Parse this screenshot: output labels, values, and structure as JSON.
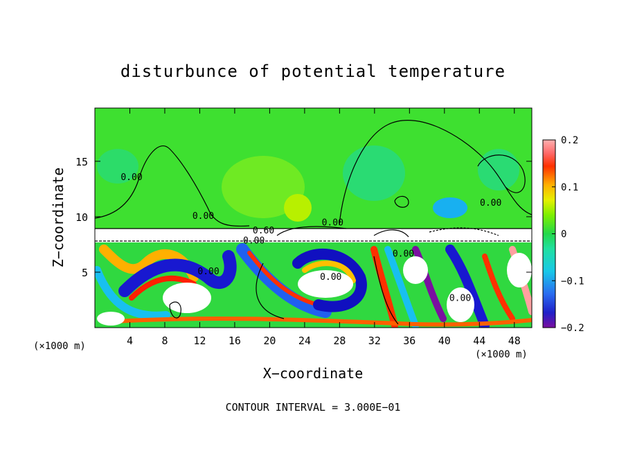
{
  "chart_data": {
    "type": "heatmap",
    "title": "disturbunce of potential temperature",
    "xlabel": "X−coordinate",
    "ylabel": "Z−coordinate",
    "x_unit_left": "(×1000 m)",
    "x_unit_right": "(×1000 m)",
    "footer": "CONTOUR INTERVAL = 3.000E−01",
    "xlim": [
      0,
      50
    ],
    "ylim": [
      0,
      19.8
    ],
    "x_ticks": [
      4,
      8,
      12,
      16,
      20,
      24,
      28,
      32,
      36,
      40,
      44,
      48
    ],
    "y_ticks": [
      5,
      10,
      15
    ],
    "colorbar": {
      "range": [
        -0.2,
        0.2
      ],
      "ticks": [
        "0.2",
        "0.1",
        "0",
        "−0.1",
        "−0.2"
      ],
      "tick_values": [
        0.2,
        0.1,
        0,
        -0.1,
        -0.2
      ]
    },
    "contour_labels": [
      {
        "text": "0.00",
        "x": 4.2,
        "y": 13.3
      },
      {
        "text": "0.00",
        "x": 12.4,
        "y": 9.8
      },
      {
        "text": "0.60",
        "x": 19.3,
        "y": 8.5
      },
      {
        "text": "0.00",
        "x": 18.2,
        "y": 7.6
      },
      {
        "text": "0.00",
        "x": 27.2,
        "y": 9.2
      },
      {
        "text": "0.00",
        "x": 13,
        "y": 4.8
      },
      {
        "text": "0.00",
        "x": 27,
        "y": 4.3
      },
      {
        "text": "0.00",
        "x": 35.3,
        "y": 6.4
      },
      {
        "text": "0.00",
        "x": 41.8,
        "y": 2.4
      },
      {
        "text": "0.00",
        "x": 45.3,
        "y": 11
      }
    ]
  }
}
